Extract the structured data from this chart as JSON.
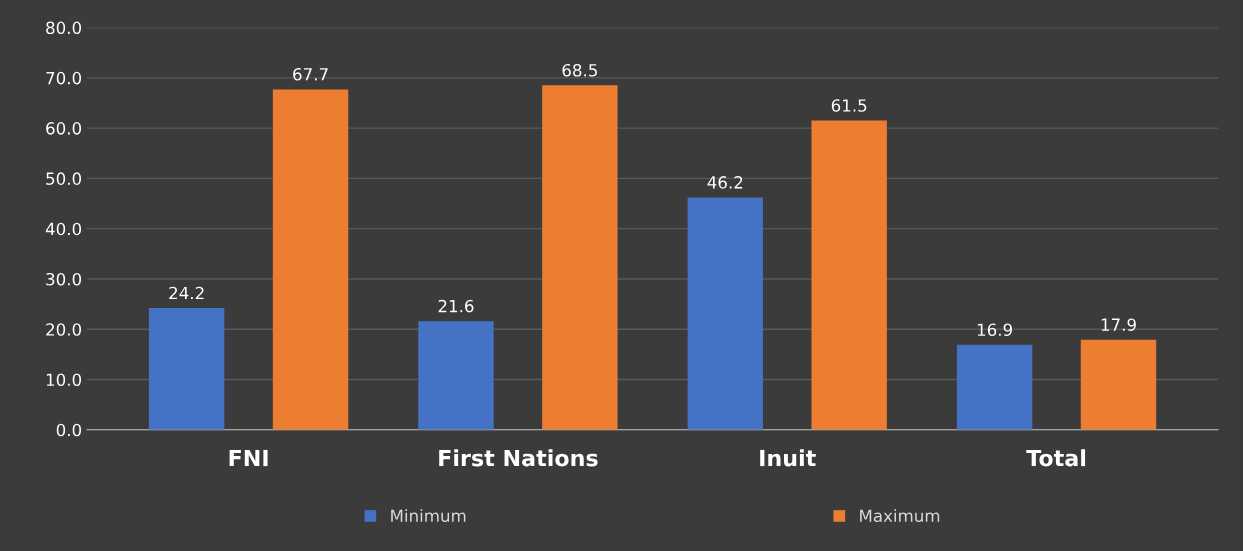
{
  "chart_data": {
    "type": "bar",
    "categories": [
      "FNI",
      "First Nations",
      "Inuit",
      "Total"
    ],
    "series": [
      {
        "name": "Minimum",
        "color": "#4472c4",
        "values": [
          24.2,
          21.6,
          46.2,
          16.9
        ]
      },
      {
        "name": "Maximum",
        "color": "#ed7d31",
        "values": [
          67.7,
          68.5,
          61.5,
          17.9
        ]
      }
    ],
    "ylim": [
      0,
      80
    ],
    "yticks": [
      {
        "value": 0,
        "label": "0.0"
      },
      {
        "value": 10,
        "label": "10.0"
      },
      {
        "value": 20,
        "label": "20.0"
      },
      {
        "value": 30,
        "label": "30.0"
      },
      {
        "value": 40,
        "label": "40.0"
      },
      {
        "value": 50,
        "label": "50.0"
      },
      {
        "value": 60,
        "label": "60.0"
      },
      {
        "value": 70,
        "label": "70.0"
      },
      {
        "value": 80,
        "label": "80.0"
      }
    ],
    "grid": "y",
    "legend": "bottom",
    "data_labels": true
  }
}
